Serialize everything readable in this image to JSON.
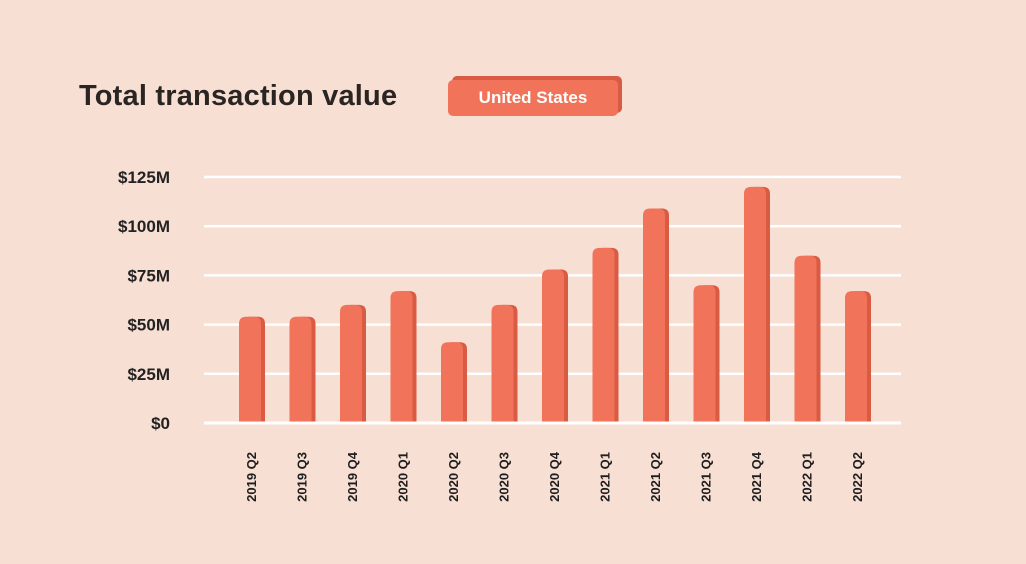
{
  "header": {
    "title": "Total transaction value",
    "region_badge": "United States"
  },
  "colors": {
    "background": "#f8dfd4",
    "bar": "#f1735a",
    "bar_side": "#d95b43",
    "grid": "#ffffff"
  },
  "chart_data": {
    "type": "bar",
    "title": "Total transaction value",
    "xlabel": "",
    "ylabel": "",
    "ylim": [
      0,
      125
    ],
    "yticks": [
      0,
      25,
      50,
      75,
      100,
      125
    ],
    "ytick_labels": [
      "$0",
      "$25M",
      "$50M",
      "$75M",
      "$100M",
      "$125M"
    ],
    "grid": true,
    "categories": [
      "2019 Q2",
      "2019 Q3",
      "2019 Q4",
      "2020 Q1",
      "2020 Q2",
      "2020 Q3",
      "2020 Q4",
      "2021 Q1",
      "2021 Q2",
      "2021 Q3",
      "2021 Q4",
      "2022 Q1",
      "2022 Q2"
    ],
    "values": [
      54,
      54,
      60,
      67,
      41,
      60,
      78,
      89,
      109,
      70,
      120,
      85,
      67
    ]
  }
}
